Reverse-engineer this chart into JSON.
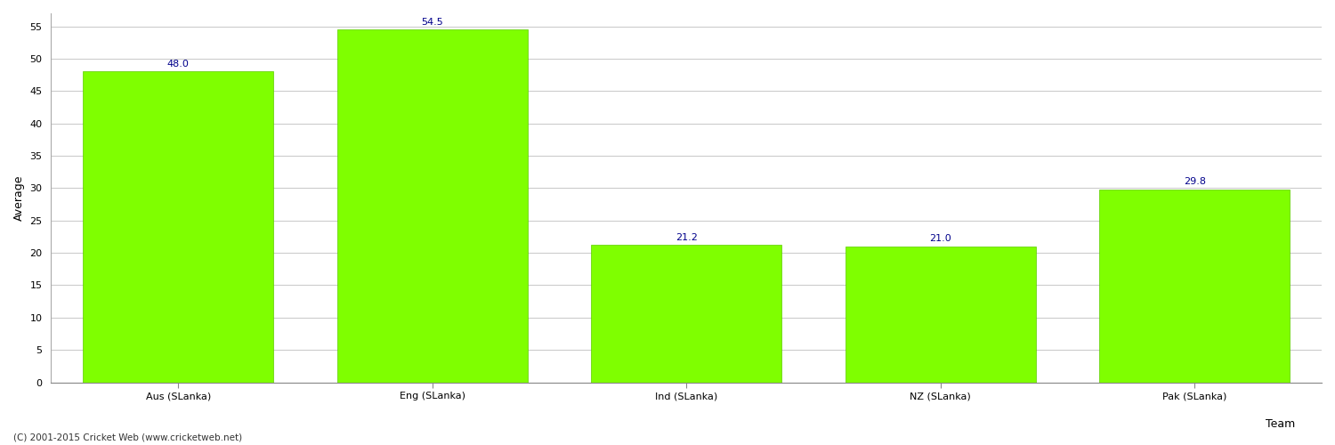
{
  "categories": [
    "Aus (SLanka)",
    "Eng (SLanka)",
    "Ind (SLanka)",
    "NZ (SLanka)",
    "Pak (SLanka)"
  ],
  "values": [
    48.0,
    54.5,
    21.2,
    21.0,
    29.8
  ],
  "bar_color": "#7fff00",
  "bar_edge_color": "#5dcc00",
  "value_label_color": "#00008b",
  "xlabel": "Team",
  "ylabel": "Average",
  "ylim": [
    0,
    57
  ],
  "yticks": [
    0,
    5,
    10,
    15,
    20,
    25,
    30,
    35,
    40,
    45,
    50,
    55
  ],
  "background_color": "#ffffff",
  "grid_color": "#cccccc",
  "label_fontsize": 8,
  "axis_label_fontsize": 9,
  "value_fontsize": 8,
  "footer_text": "(C) 2001-2015 Cricket Web (www.cricketweb.net)"
}
